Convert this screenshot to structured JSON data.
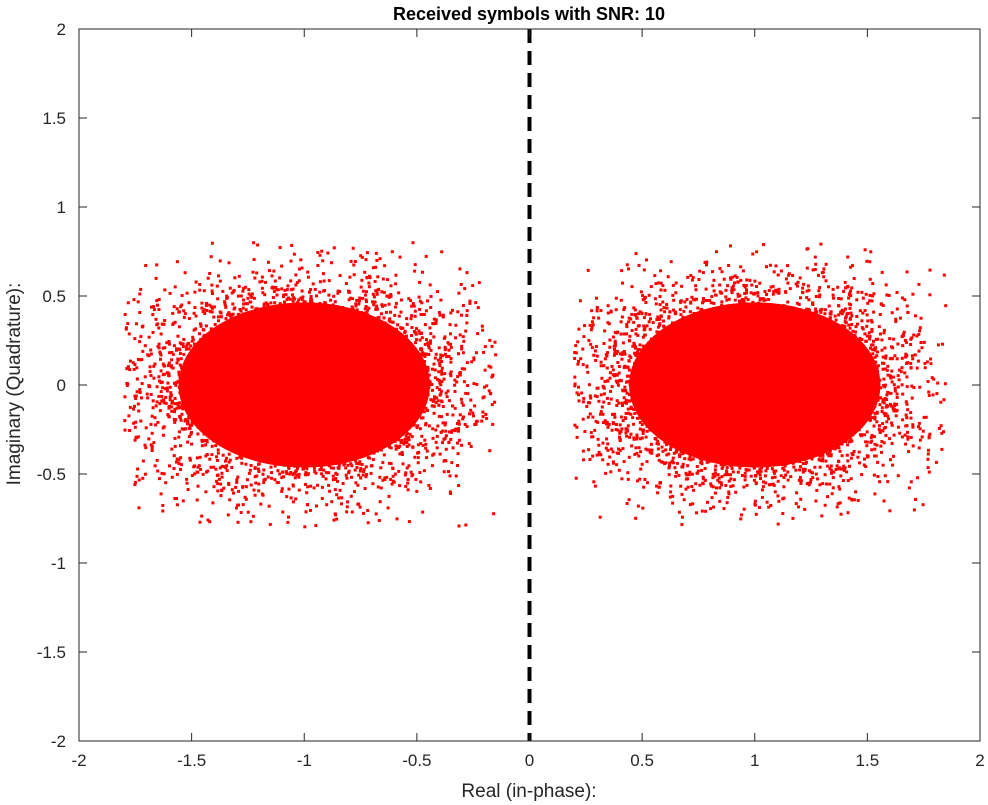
{
  "chart_data": {
    "type": "scatter",
    "title": "Received symbols with SNR: 10",
    "xlabel": "Real (in-phase):",
    "ylabel": "Imaginary (Quadrature):",
    "xlim": [
      -2,
      2
    ],
    "ylim": [
      -2,
      2
    ],
    "xticks": [
      -2,
      -1.5,
      -1,
      -0.5,
      0,
      0.5,
      1,
      1.5,
      2
    ],
    "xtick_labels": [
      "-2",
      "-1.5",
      "-1",
      "-0.5",
      "0",
      "0.5",
      "1",
      "1.5",
      "2"
    ],
    "yticks": [
      -2,
      -1.5,
      -1,
      -0.5,
      0,
      0.5,
      1,
      1.5,
      2
    ],
    "ytick_labels": [
      "-2",
      "-1.5",
      "-1",
      "-0.5",
      "0",
      "0.5",
      "1",
      "1.5",
      "2"
    ],
    "grid": false,
    "marker_color": "#ff0000",
    "clusters": [
      {
        "center": [
          -1,
          0
        ],
        "spread": [
          0.36,
          0.29
        ],
        "extent_x": [
          -1.8,
          -0.15
        ],
        "extent_y": [
          -0.8,
          0.8
        ]
      },
      {
        "center": [
          1,
          0
        ],
        "spread": [
          0.36,
          0.29
        ],
        "extent_x": [
          0.2,
          1.85
        ],
        "extent_y": [
          -0.8,
          0.8
        ]
      }
    ],
    "decision_boundary": {
      "x": 0,
      "style": "dashed",
      "color": "#000000"
    }
  }
}
